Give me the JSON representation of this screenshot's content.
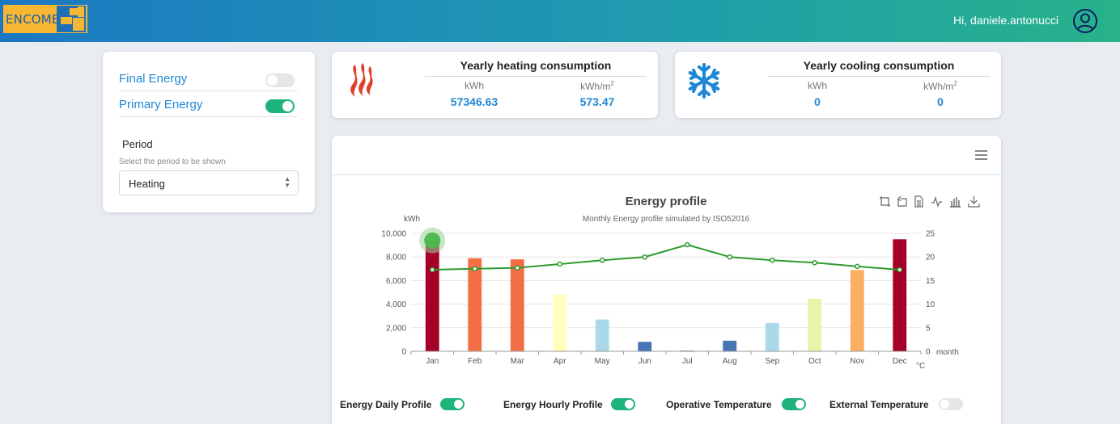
{
  "app": {
    "logo_text": "ENCOME",
    "greeting": "Hi, daniele.antonucci",
    "brand_colors": {
      "header_start": "#1b78c2",
      "header_end": "#27b28a",
      "logo_bg": "#f7b733",
      "accent_green": "#1db37b",
      "link_blue": "#1e88d4"
    }
  },
  "settings": {
    "toggles": [
      {
        "label": "Final Energy",
        "on": false
      },
      {
        "label": "Primary Energy",
        "on": true
      }
    ],
    "period": {
      "title": "Period",
      "help": "Select the period to be shown",
      "value": "Heating"
    }
  },
  "kpis": {
    "heating": {
      "title": "Yearly heating consumption",
      "icon": "flame-icon",
      "unit1": "kWh",
      "unit2": "kWh/m",
      "unit2_sup": "2",
      "value1": "57346.63",
      "value2": "573.47"
    },
    "cooling": {
      "title": "Yearly cooling consumption",
      "icon": "snowflake-icon",
      "unit1": "kWh",
      "unit2": "kWh/m",
      "unit2_sup": "2",
      "value1": "0",
      "value2": "0"
    }
  },
  "chart_toolbox": [
    "zoom-icon",
    "zoom-reset-icon",
    "data-view-icon",
    "line-chart-icon",
    "bar-chart-icon",
    "download-icon"
  ],
  "chart_data": {
    "type": "bar",
    "title": "Energy profile",
    "subtitle": "Monthly Energy profile simulated by ISO52016",
    "ylabel": "kWh",
    "y2label": "°C",
    "xlabel": "month",
    "categories": [
      "Jan",
      "Feb",
      "Mar",
      "Apr",
      "May",
      "Jun",
      "Jul",
      "Aug",
      "Sep",
      "Oct",
      "Nov",
      "Dec"
    ],
    "ylim": [
      0,
      10000
    ],
    "yticks": [
      "0",
      "2,000",
      "4,000",
      "6,000",
      "8,000",
      "10,000"
    ],
    "y2lim": [
      0,
      25
    ],
    "y2ticks": [
      "0",
      "5",
      "10",
      "15",
      "20",
      "25"
    ],
    "grid": true,
    "bars": {
      "values": [
        9400,
        7900,
        7800,
        4800,
        2700,
        800,
        60,
        900,
        2400,
        4450,
        6900,
        9500
      ],
      "colors": [
        "#a50026",
        "#f46d43",
        "#f46d43",
        "#ffffbf",
        "#abd9e9",
        "#4575b4",
        "#4575b4",
        "#4575b4",
        "#abd9e9",
        "#e6f5a8",
        "#fdae61",
        "#a50026"
      ]
    },
    "line": {
      "color": "#2e9a2e",
      "values": [
        17.3,
        17.5,
        17.7,
        18.5,
        19.3,
        20.0,
        22.6,
        20.0,
        19.3,
        18.8,
        18.0,
        17.3
      ]
    },
    "hover_index": 0
  },
  "legend_toggles": [
    {
      "label": "Energy Daily Profile",
      "on": true
    },
    {
      "label": "Energy Hourly Profile",
      "on": true
    },
    {
      "label": "Operative Temperature",
      "on": true
    },
    {
      "label": "External Temperature",
      "on": false
    }
  ]
}
